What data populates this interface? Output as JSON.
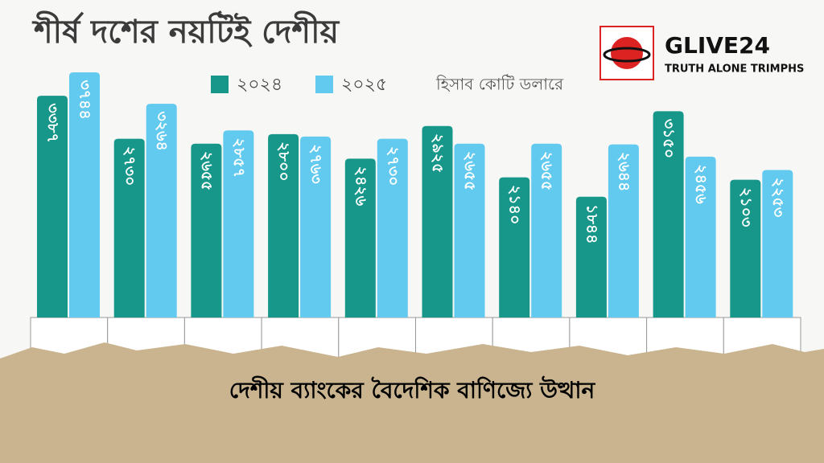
{
  "chart_data": {
    "type": "bar",
    "title": "শীর্ষ দশের নয়টিই দেশীয়",
    "unit_note": "হিসাব কোটি ডলারে",
    "categories": [
      null,
      null,
      null,
      null,
      null,
      null,
      null,
      null,
      null,
      null
    ],
    "series": [
      {
        "name": "২০২৪",
        "color": "#17978a",
        "values": [
          3387,
          2730,
          2655,
          2800,
          2426,
          2925,
          2140,
          1844,
          3150,
          2103
        ],
        "value_labels": [
          "৩৩৮৭",
          "২৭৩০",
          "২৬৫৫",
          "২৮০০",
          "২৪২৬",
          "২৯২৫",
          "২১৪০",
          "১৮৪৪",
          "৩১৫০",
          "২১০৩"
        ]
      },
      {
        "name": "২০২৫",
        "color": "#62c9ef",
        "values": [
          3744,
          3264,
          2857,
          2763,
          2730,
          2655,
          2655,
          2644,
          2456,
          2253
        ],
        "value_labels": [
          "৩৭৪৪",
          "৩২৬৪",
          "২৮৫৭",
          "২৭৬৩",
          "২৭৩০",
          "২৬৫৫",
          "২৬৫৫",
          "২৬৪৪",
          "২৪৫৬",
          "২২৫৩"
        ]
      }
    ],
    "logo": {
      "name": "GLIVE24",
      "tagline": "TRUTH ALONE TRIMPHS"
    },
    "caption": "দেশীয় ব্যাংকের বৈদেশিক বাণিজ্যে উত্থান"
  }
}
